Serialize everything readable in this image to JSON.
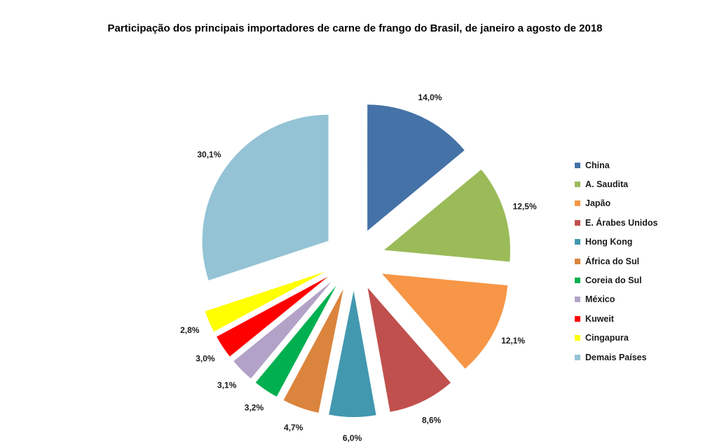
{
  "chart_data": {
    "type": "pie",
    "title": "Participação dos principais importadores de carne de frango do Brasil, de janeiro a agosto de 2018",
    "legend_position": "right",
    "categories": [
      "China",
      "A. Saudita",
      "Japão",
      "E. Árabes Unidos",
      "Hong Kong",
      "África do Sul",
      "Coreia do Sul",
      "México",
      "Kuweit",
      "Cingapura",
      "Demais Países"
    ],
    "values": [
      14.0,
      12.5,
      12.1,
      8.6,
      6.0,
      4.7,
      3.2,
      3.1,
      3.0,
      2.8,
      30.1
    ],
    "labels": [
      "14,0%",
      "12,5%",
      "12,1%",
      "8,6%",
      "6,0%",
      "4,7%",
      "3,2%",
      "3,1%",
      "3,0%",
      "2,8%",
      "30,1%"
    ],
    "colors": [
      "#4572A7",
      "#9BBB59",
      "#F79646",
      "#C0504D",
      "#4198AF",
      "#DB843D",
      "#00B050",
      "#B3A2C7",
      "#FF0000",
      "#FFFF00",
      "#93C3D5"
    ]
  }
}
